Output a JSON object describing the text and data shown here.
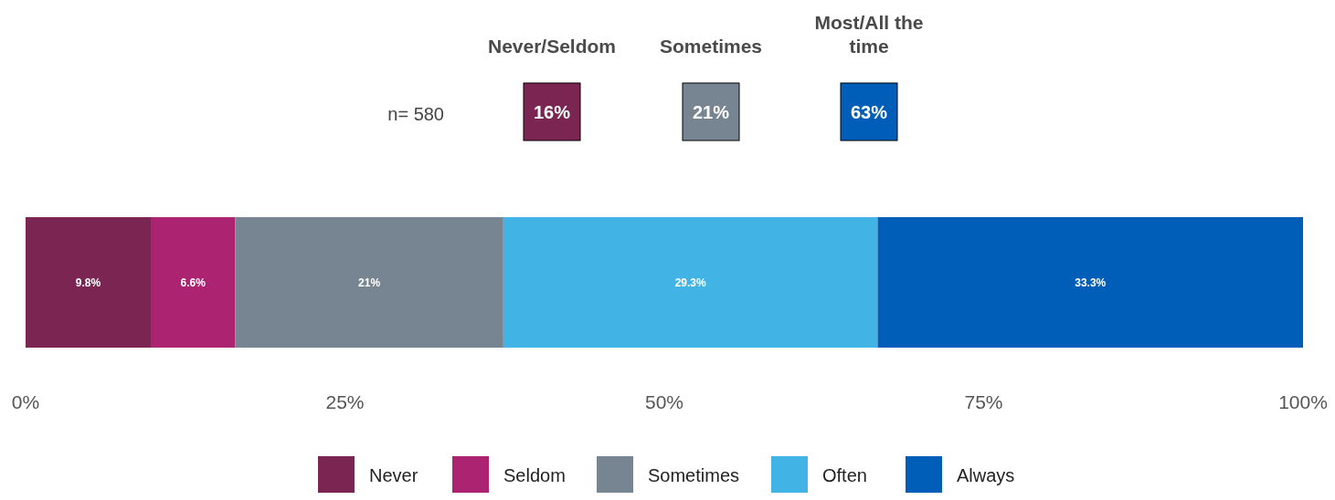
{
  "chart_data": {
    "type": "bar",
    "orientation": "horizontal",
    "stacked": true,
    "categories": [
      null
    ],
    "series": [
      {
        "name": "Never",
        "color": "#7b2552",
        "values": [
          9.8
        ],
        "value_labels": [
          "9.8%"
        ]
      },
      {
        "name": "Seldom",
        "color": "#ac2471",
        "values": [
          6.6
        ],
        "value_labels": [
          "6.6%"
        ]
      },
      {
        "name": "Sometimes",
        "color": "#778592",
        "values": [
          21
        ],
        "value_labels": [
          "21%"
        ]
      },
      {
        "name": "Often",
        "color": "#41b4e5",
        "values": [
          29.3
        ],
        "value_labels": [
          "29.3%"
        ]
      },
      {
        "name": "Always",
        "color": "#005eb8",
        "values": [
          33.3
        ],
        "value_labels": [
          "33.3%"
        ]
      }
    ],
    "xlim": [
      0,
      100
    ],
    "xticks": [
      {
        "value": 0,
        "label": "0%"
      },
      {
        "value": 25,
        "label": "25%"
      },
      {
        "value": 50,
        "label": "50%"
      },
      {
        "value": 75,
        "label": "75%"
      },
      {
        "value": 100,
        "label": "100%"
      }
    ],
    "legend": "bottom",
    "grid": false,
    "annotations": [
      "n= 580",
      "Never/Seldom",
      "16%",
      "Sometimes",
      "21%",
      "Most/All the time",
      "63%"
    ]
  }
}
